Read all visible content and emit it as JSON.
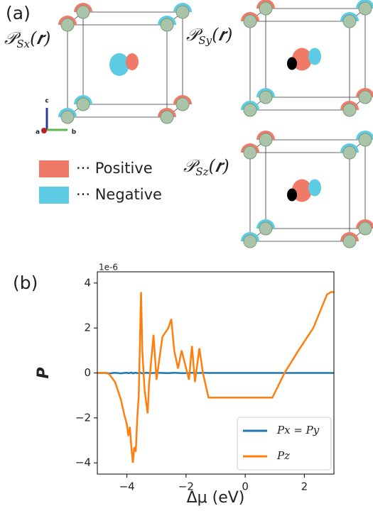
{
  "panel_a": {
    "label": "(a)",
    "maps": [
      {
        "symbol": "𝒫",
        "subscript": "Sx",
        "argument": "(𝒓)"
      },
      {
        "symbol": "𝒫",
        "subscript": "Sy",
        "argument": "(𝒓)"
      },
      {
        "symbol": "𝒫",
        "subscript": "Sz",
        "argument": "(𝒓)"
      }
    ],
    "axes_labels": [
      "c",
      "a",
      "b"
    ],
    "legend": [
      {
        "text": "··· Positive",
        "color": "#f07a68"
      },
      {
        "text": "··· Negative",
        "color": "#5ccbe3"
      }
    ]
  },
  "chart_data": {
    "type": "line",
    "panel_label": "(b)",
    "offset_text": "1e-6",
    "y_label": "P",
    "x_label": "Δμ (eV)",
    "x": [
      -5,
      -4.7,
      -4.6,
      -4.4,
      -4.2,
      -4.1,
      -4.0,
      -3.95,
      -3.9,
      -3.85,
      -3.8,
      -3.75,
      -3.7,
      -3.65,
      -3.6,
      -3.55,
      -3.52,
      -3.48,
      -3.4,
      -3.3,
      -3.25,
      -3.1,
      -3.0,
      -2.8,
      -2.6,
      -2.5,
      -2.4,
      -2.27,
      -2.15,
      -1.9,
      -1.8,
      -1.7,
      -1.55,
      -1.43,
      -1.24,
      -0.83,
      0.92,
      1.33,
      1.8,
      2.3,
      2.77,
      2.9,
      3.0
    ],
    "series": [
      {
        "name": "Px = Py",
        "color": "#1f77b4",
        "values": [
          0,
          0,
          -0.02,
          0.01,
          -0.02,
          0,
          0.01,
          -0.01,
          0,
          0.02,
          -0.02,
          0,
          0.01,
          -0.01,
          0,
          0.02,
          0,
          -0.02,
          0,
          0.01,
          -0.01,
          0,
          0.01,
          0,
          -0.01,
          0,
          0.01,
          0,
          -0.01,
          0,
          0.01,
          -0.01,
          0,
          0.01,
          0,
          0,
          0,
          0,
          0,
          0,
          0,
          0,
          0
        ]
      },
      {
        "name": "Pz",
        "color": "#ff7f0e",
        "values": [
          0,
          0,
          -0.05,
          -0.4,
          -1.2,
          -1.8,
          -2.3,
          -2.8,
          -2.4,
          -3.3,
          -4.0,
          -3.3,
          -3.5,
          -2.0,
          -1.0,
          2.0,
          3.6,
          1.0,
          -0.8,
          -1.8,
          -0.5,
          1.7,
          -0.3,
          1.6,
          2.0,
          2.4,
          1.0,
          0.2,
          1.0,
          -0.3,
          1.2,
          -0.4,
          1.1,
          0,
          -1.1,
          -1.1,
          -1.1,
          0,
          1.0,
          2.0,
          3.5,
          3.6,
          3.6
        ]
      }
    ],
    "xlim": [
      -5,
      3
    ],
    "ylim": [
      -4.5,
      4.5
    ],
    "xticks": [
      {
        "value": -4,
        "label": "−4"
      },
      {
        "value": -2,
        "label": "−2"
      },
      0,
      2
    ],
    "yticks": [
      {
        "value": -4,
        "label": "−4"
      },
      {
        "value": -2,
        "label": "−2"
      },
      0,
      2,
      4
    ],
    "legend_position": "lower right",
    "grid": false
  }
}
